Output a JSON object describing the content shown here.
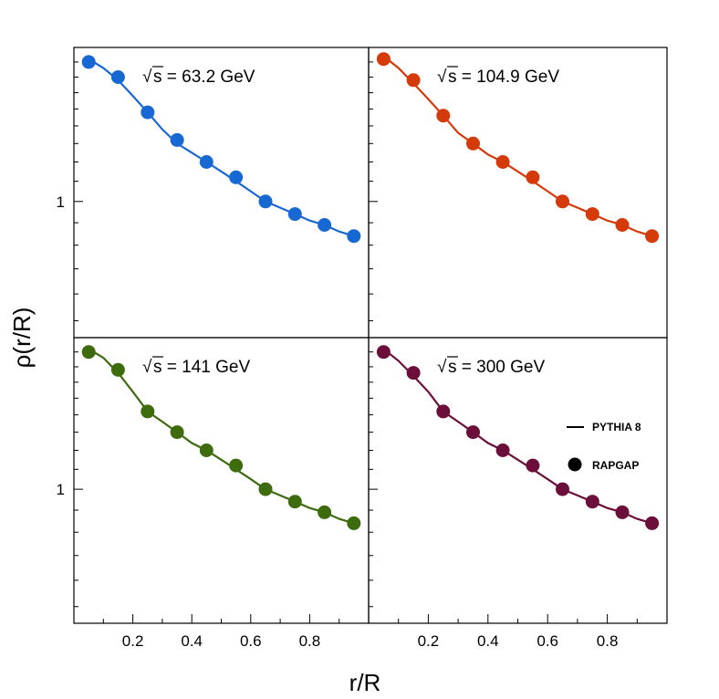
{
  "figure": {
    "ylabel": "ρ(r/R)",
    "xlabel": "r/R"
  },
  "legend": {
    "line_label": "PYTHIA 8",
    "marker_label": "RAPGAP"
  },
  "chart_data": {
    "type": "scatter",
    "layout": "2x2 grid, shared axes",
    "xlim": [
      0,
      1
    ],
    "ylim": [
      0.72,
      1.45
    ],
    "y_scale": "log",
    "x_ticks": [
      "0.2",
      "0.4",
      "0.6",
      "0.8"
    ],
    "y_ticks": [
      "1"
    ],
    "legend_position": "bottom-right panel, right side",
    "panels": [
      {
        "title_root": "s",
        "title_rest": " = 63.2 GeV",
        "color": "#1768d3",
        "points": {
          "x": [
            0.05,
            0.15,
            0.25,
            0.35,
            0.45,
            0.55,
            0.65,
            0.75,
            0.85,
            0.95
          ],
          "y": [
            1.4,
            1.35,
            1.24,
            1.16,
            1.1,
            1.06,
            1.0,
            0.97,
            0.945,
            0.92
          ]
        },
        "line": {
          "x": [
            0.05,
            0.1,
            0.15,
            0.2,
            0.25,
            0.3,
            0.35,
            0.4,
            0.45,
            0.5,
            0.55,
            0.6,
            0.65,
            0.7,
            0.75,
            0.8,
            0.85,
            0.9,
            0.95
          ],
          "y": [
            1.41,
            1.38,
            1.34,
            1.29,
            1.24,
            1.19,
            1.15,
            1.125,
            1.1,
            1.075,
            1.05,
            1.025,
            1.0,
            0.985,
            0.97,
            0.955,
            0.945,
            0.93,
            0.92
          ]
        }
      },
      {
        "title_root": "s",
        "title_rest": " = 104.9 GeV",
        "color": "#d43a0a",
        "points": {
          "x": [
            0.05,
            0.15,
            0.25,
            0.35,
            0.45,
            0.55,
            0.65,
            0.75,
            0.85,
            0.95
          ],
          "y": [
            1.41,
            1.34,
            1.23,
            1.15,
            1.1,
            1.06,
            1.0,
            0.97,
            0.945,
            0.92
          ]
        },
        "line": {
          "x": [
            0.05,
            0.1,
            0.15,
            0.2,
            0.25,
            0.3,
            0.35,
            0.4,
            0.45,
            0.5,
            0.55,
            0.6,
            0.65,
            0.7,
            0.75,
            0.8,
            0.85,
            0.9,
            0.95
          ],
          "y": [
            1.42,
            1.38,
            1.33,
            1.28,
            1.23,
            1.18,
            1.15,
            1.12,
            1.1,
            1.075,
            1.05,
            1.025,
            1.0,
            0.985,
            0.97,
            0.955,
            0.945,
            0.93,
            0.92
          ]
        }
      },
      {
        "title_root": "s",
        "title_rest": " = 141 GeV",
        "color": "#3d6b0e",
        "points": {
          "x": [
            0.05,
            0.15,
            0.25,
            0.35,
            0.45,
            0.55,
            0.65,
            0.75,
            0.85,
            0.95
          ],
          "y": [
            1.4,
            1.34,
            1.21,
            1.15,
            1.1,
            1.06,
            1.0,
            0.97,
            0.945,
            0.92
          ]
        },
        "line": {
          "x": [
            0.05,
            0.1,
            0.15,
            0.2,
            0.25,
            0.3,
            0.35,
            0.4,
            0.45,
            0.5,
            0.55,
            0.6,
            0.65,
            0.7,
            0.75,
            0.8,
            0.85,
            0.9,
            0.95
          ],
          "y": [
            1.41,
            1.38,
            1.33,
            1.27,
            1.21,
            1.18,
            1.15,
            1.12,
            1.1,
            1.075,
            1.05,
            1.025,
            1.0,
            0.985,
            0.97,
            0.955,
            0.945,
            0.93,
            0.92
          ]
        }
      },
      {
        "title_root": "s",
        "title_rest": " = 300 GeV",
        "color": "#6b0f3a",
        "points": {
          "x": [
            0.05,
            0.15,
            0.25,
            0.35,
            0.45,
            0.55,
            0.65,
            0.75,
            0.85,
            0.95
          ],
          "y": [
            1.4,
            1.33,
            1.21,
            1.15,
            1.1,
            1.06,
            1.0,
            0.97,
            0.945,
            0.92
          ]
        },
        "line": {
          "x": [
            0.05,
            0.1,
            0.15,
            0.2,
            0.25,
            0.3,
            0.35,
            0.4,
            0.45,
            0.5,
            0.55,
            0.6,
            0.65,
            0.7,
            0.75,
            0.8,
            0.85,
            0.9,
            0.95
          ],
          "y": [
            1.41,
            1.37,
            1.32,
            1.27,
            1.21,
            1.18,
            1.15,
            1.12,
            1.1,
            1.075,
            1.05,
            1.025,
            1.0,
            0.985,
            0.97,
            0.955,
            0.945,
            0.93,
            0.92
          ]
        }
      }
    ]
  }
}
